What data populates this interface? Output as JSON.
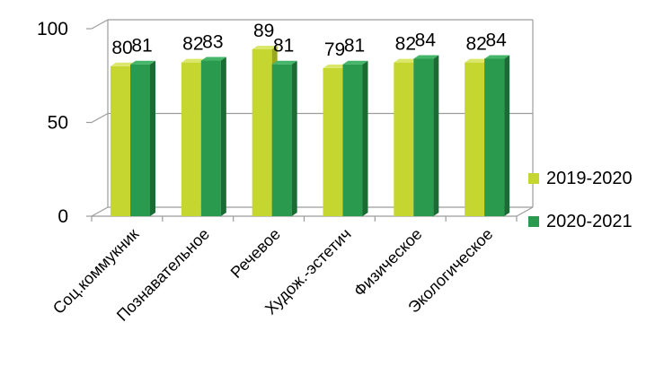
{
  "chart_data": {
    "type": "bar",
    "categories": [
      "Соц.коммукник",
      "Познавательное",
      "Речевое",
      "Худож.-эстетич",
      "Физическое",
      "Экологическое"
    ],
    "series": [
      {
        "name": "2019-2020",
        "values": [
          80,
          82,
          89,
          79,
          82,
          82
        ],
        "color": "#c6d631",
        "side_color": "#9aa81c",
        "top_color": "#dbe76a"
      },
      {
        "name": "2020-2021",
        "values": [
          81,
          83,
          81,
          81,
          84,
          84
        ],
        "color": "#2a9a4f",
        "side_color": "#1b6b35",
        "top_color": "#45b56a"
      }
    ],
    "y_ticks": [
      "0",
      "50",
      "100"
    ],
    "ylim": [
      0,
      100
    ],
    "grid": true,
    "legend_position": "right",
    "title": "",
    "xlabel": "",
    "ylabel": ""
  }
}
